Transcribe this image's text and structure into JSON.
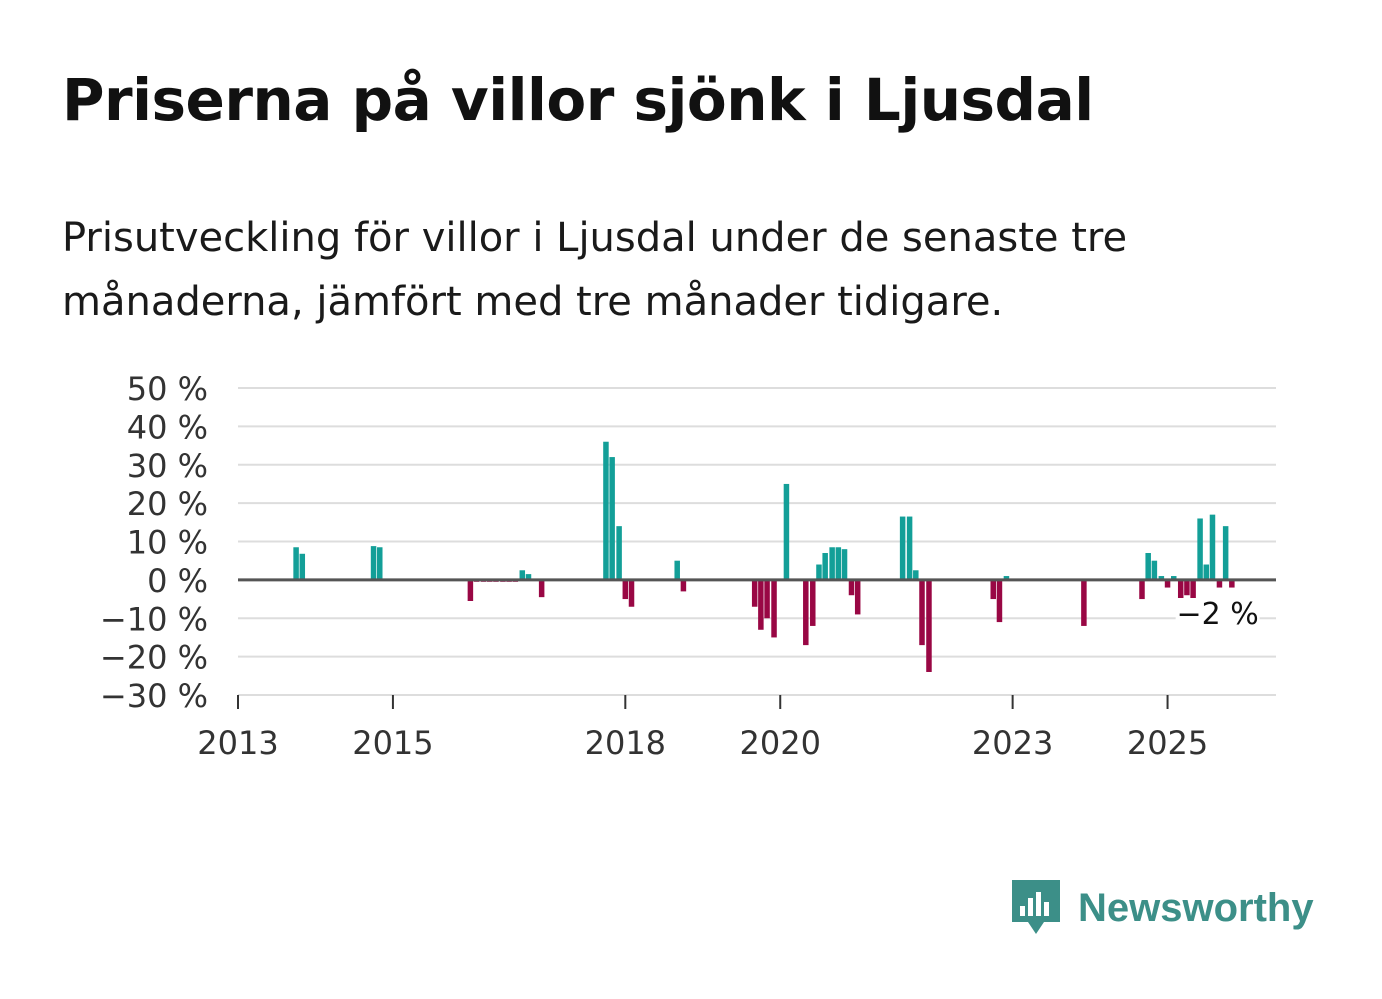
{
  "header": {
    "title": "Priserna på villor sjönk i Ljusdal",
    "subtitle": "Prisutveckling för villor i Ljusdal under de senaste tre månaderna, jämfört med tre månader tidigare."
  },
  "brand": {
    "name": "Newsworthy",
    "icon": "newsworthy-logo-icon",
    "color": "#3c8f88"
  },
  "colors": {
    "positive": "#139f98",
    "negative": "#990744",
    "grid": "#dddddd",
    "zero": "#555555"
  },
  "chart_data": {
    "type": "bar",
    "title": "Priserna på villor sjönk i Ljusdal",
    "xlabel": "",
    "ylabel": "",
    "ylim": [
      -30,
      50
    ],
    "xlim": [
      2013.0,
      2026.4
    ],
    "yticks": [
      50,
      40,
      30,
      20,
      10,
      0,
      -10,
      -20,
      -30
    ],
    "ytick_labels": [
      "50 %",
      "40 %",
      "30 %",
      "20 %",
      "10 %",
      "0 %",
      "−10 %",
      "−20 %",
      "−30 %"
    ],
    "xticks": [
      2013,
      2015,
      2018,
      2020,
      2023,
      2025
    ],
    "xtick_labels": [
      "2013",
      "2015",
      "2018",
      "2020",
      "2023",
      "2025"
    ],
    "grid": true,
    "annotation": {
      "label": "−2 %",
      "x": 2025.75,
      "value": -2
    },
    "series": [
      {
        "name": "Prisutveckling",
        "points": [
          {
            "x": 2013.75,
            "value": 8.5
          },
          {
            "x": 2013.83,
            "value": 6.8
          },
          {
            "x": 2014.75,
            "value": 8.8
          },
          {
            "x": 2014.83,
            "value": 8.5
          },
          {
            "x": 2016.0,
            "value": -5.5
          },
          {
            "x": 2016.08,
            "value": -0.5
          },
          {
            "x": 2016.17,
            "value": -0.5
          },
          {
            "x": 2016.25,
            "value": -0.5
          },
          {
            "x": 2016.33,
            "value": -0.5
          },
          {
            "x": 2016.42,
            "value": -0.5
          },
          {
            "x": 2016.5,
            "value": -0.5
          },
          {
            "x": 2016.58,
            "value": -0.5
          },
          {
            "x": 2016.67,
            "value": 2.5
          },
          {
            "x": 2016.75,
            "value": 1.5
          },
          {
            "x": 2016.92,
            "value": -4.5
          },
          {
            "x": 2017.75,
            "value": 36.0
          },
          {
            "x": 2017.83,
            "value": 32.0
          },
          {
            "x": 2017.92,
            "value": 14.0
          },
          {
            "x": 2018.0,
            "value": -5.0
          },
          {
            "x": 2018.08,
            "value": -7.0
          },
          {
            "x": 2018.67,
            "value": 5.0
          },
          {
            "x": 2018.75,
            "value": -3.0
          },
          {
            "x": 2019.67,
            "value": -7.0
          },
          {
            "x": 2019.75,
            "value": -13.0
          },
          {
            "x": 2019.83,
            "value": -10.0
          },
          {
            "x": 2019.92,
            "value": -15.0
          },
          {
            "x": 2020.08,
            "value": 25.0
          },
          {
            "x": 2020.33,
            "value": -17.0
          },
          {
            "x": 2020.42,
            "value": -12.0
          },
          {
            "x": 2020.5,
            "value": 4.0
          },
          {
            "x": 2020.58,
            "value": 7.0
          },
          {
            "x": 2020.67,
            "value": 8.5
          },
          {
            "x": 2020.75,
            "value": 8.5
          },
          {
            "x": 2020.83,
            "value": 8.0
          },
          {
            "x": 2020.92,
            "value": -4.0
          },
          {
            "x": 2021.0,
            "value": -9.0
          },
          {
            "x": 2021.58,
            "value": 16.5
          },
          {
            "x": 2021.67,
            "value": 16.5
          },
          {
            "x": 2021.75,
            "value": 2.5
          },
          {
            "x": 2021.83,
            "value": -17.0
          },
          {
            "x": 2021.92,
            "value": -24.0
          },
          {
            "x": 2022.75,
            "value": -5.0
          },
          {
            "x": 2022.83,
            "value": -11.0
          },
          {
            "x": 2022.92,
            "value": 1.0
          },
          {
            "x": 2023.92,
            "value": -12.0
          },
          {
            "x": 2024.67,
            "value": -5.0
          },
          {
            "x": 2024.75,
            "value": 7.0
          },
          {
            "x": 2024.83,
            "value": 5.0
          },
          {
            "x": 2024.92,
            "value": 1.0
          },
          {
            "x": 2025.0,
            "value": -2.0
          },
          {
            "x": 2025.08,
            "value": 1.0
          },
          {
            "x": 2025.17,
            "value": -5.0
          },
          {
            "x": 2025.25,
            "value": -4.0
          },
          {
            "x": 2025.33,
            "value": -5.0
          },
          {
            "x": 2025.42,
            "value": 16.0
          },
          {
            "x": 2025.5,
            "value": 4.0
          },
          {
            "x": 2025.58,
            "value": 17.0
          },
          {
            "x": 2025.67,
            "value": -2.0
          },
          {
            "x": 2025.75,
            "value": 14.0
          },
          {
            "x": 2025.83,
            "value": -2.0
          }
        ]
      }
    ]
  }
}
